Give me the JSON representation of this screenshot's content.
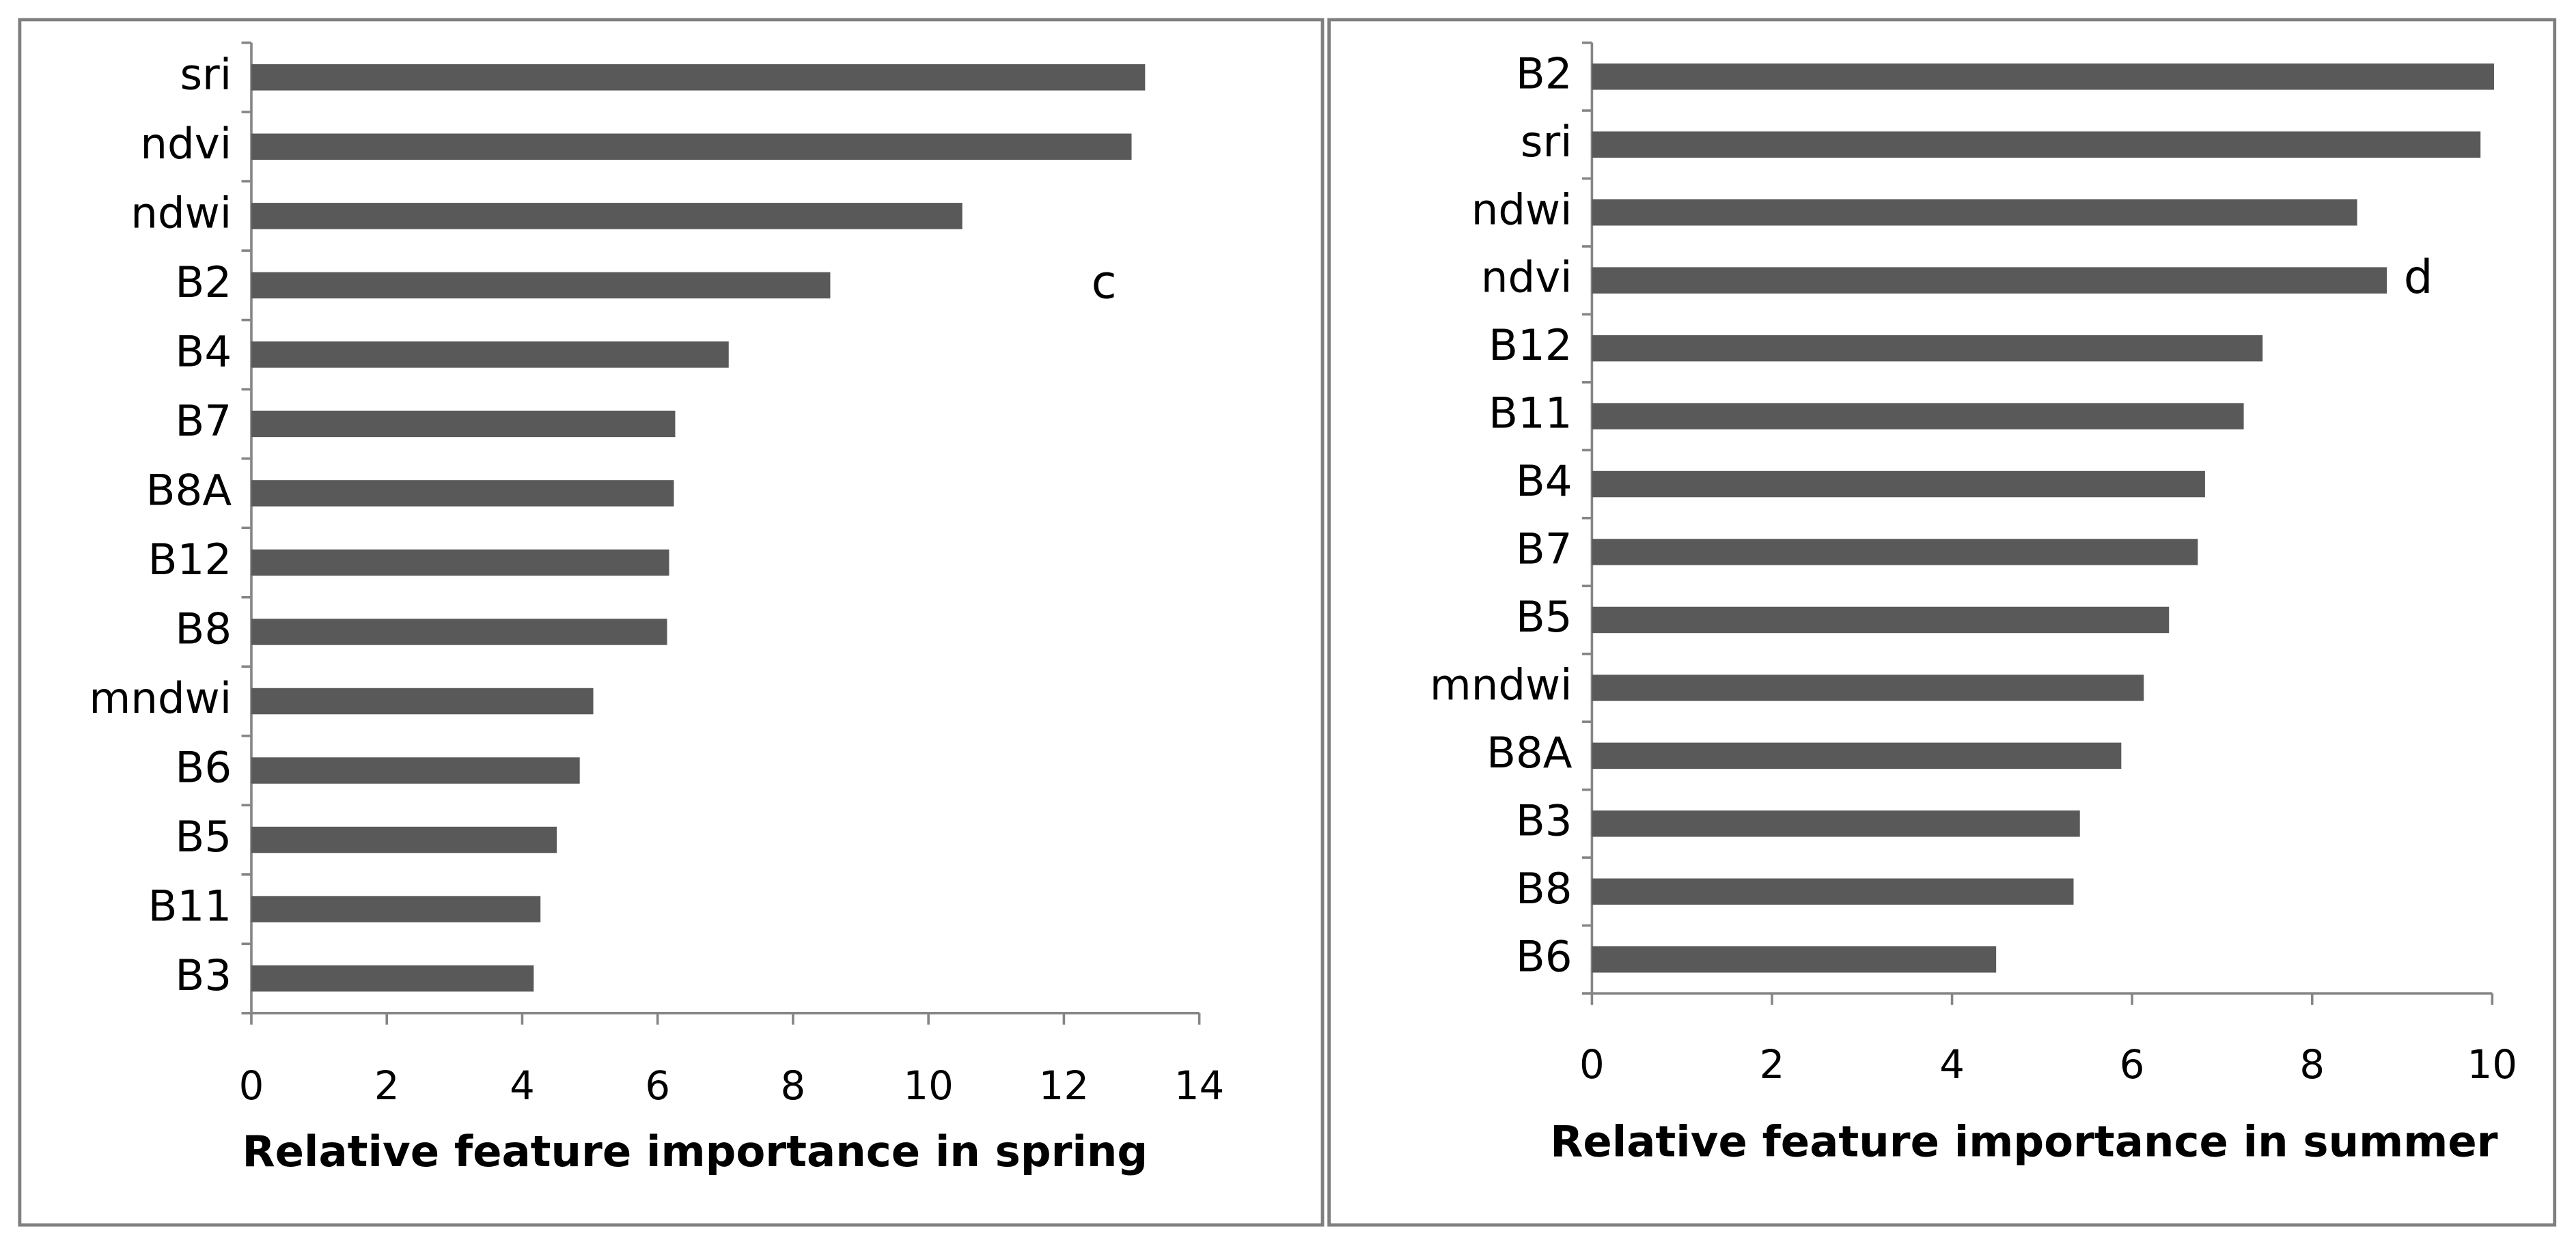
{
  "chart_data": [
    {
      "type": "bar",
      "orientation": "horizontal",
      "annotation": "c",
      "color": "#595959",
      "xlabel": "Relative feature importance in spring",
      "categories": [
        "sri",
        "ndvi",
        "ndwi",
        "B2",
        "B4",
        "B7",
        "B8A",
        "B12",
        "B8",
        "mndwi",
        "B6",
        "B5",
        "B11",
        "B3"
      ],
      "values": [
        13.2,
        13.0,
        10.5,
        8.55,
        7.05,
        6.26,
        6.24,
        6.17,
        6.14,
        5.05,
        4.85,
        4.51,
        4.27,
        4.17
      ],
      "xlim": [
        0,
        14
      ],
      "xticks": [
        0,
        2,
        4,
        6,
        8,
        10,
        12,
        14
      ]
    },
    {
      "type": "bar",
      "orientation": "horizontal",
      "annotation": "d",
      "color": "#595959",
      "xlabel": "Relative feature importance in summer",
      "categories": [
        "B2",
        "sri",
        "ndwi",
        "ndvi",
        "B12",
        "B11",
        "B4",
        "B7",
        "B5",
        "mndwi",
        "B8A",
        "B3",
        "B8",
        "B6"
      ],
      "values": [
        10.02,
        9.87,
        8.5,
        8.83,
        7.45,
        7.24,
        6.81,
        6.73,
        6.41,
        6.13,
        5.88,
        5.42,
        5.35,
        4.49
      ],
      "xlim": [
        0,
        10
      ],
      "xticks": [
        0,
        2,
        4,
        6,
        8,
        10
      ]
    }
  ]
}
